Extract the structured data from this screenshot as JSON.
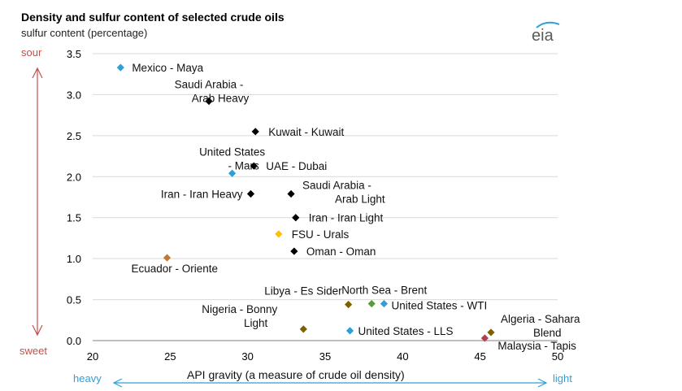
{
  "logo": {
    "text": "eia"
  },
  "chart_data": {
    "type": "scatter",
    "title": "Density and sulfur content of selected crude oils",
    "ylabel": "sulfur content (percentage)",
    "xlabel": "API gravity (a measure of crude oil density)",
    "xlim": [
      20,
      50
    ],
    "ylim": [
      0,
      3.5
    ],
    "xticks": [
      20,
      25,
      30,
      35,
      40,
      45,
      50
    ],
    "yticks": [
      "0.0",
      "0.5",
      "1.0",
      "1.5",
      "2.0",
      "2.5",
      "3.0",
      "3.5"
    ],
    "grid": true,
    "sulfur_scale": {
      "high": "sour",
      "low": "sweet"
    },
    "density_scale": {
      "low": "heavy",
      "high": "light"
    },
    "points": [
      {
        "name": "Mexico - Maya",
        "x": 21.8,
        "y": 3.33,
        "color": "#2e9fd8"
      },
      {
        "name": "Saudi Arabia - Arab Heavy",
        "x": 27.5,
        "y": 2.92,
        "color": "#000000"
      },
      {
        "name": "Kuwait - Kuwait",
        "x": 30.5,
        "y": 2.55,
        "color": "#000000"
      },
      {
        "name": "United States - Mars",
        "x": 29.0,
        "y": 2.04,
        "color": "#2e9fd8"
      },
      {
        "name": "UAE - Dubai",
        "x": 30.4,
        "y": 2.13,
        "color": "#000000"
      },
      {
        "name": "Iran - Iran Heavy",
        "x": 30.2,
        "y": 1.79,
        "color": "#000000"
      },
      {
        "name": "Saudi Arabia - Arab Light",
        "x": 32.8,
        "y": 1.79,
        "color": "#000000"
      },
      {
        "name": "Iran - Iran Light",
        "x": 33.1,
        "y": 1.5,
        "color": "#000000"
      },
      {
        "name": "FSU - Urals",
        "x": 32.0,
        "y": 1.3,
        "color": "#ffc000"
      },
      {
        "name": "Oman - Oman",
        "x": 33.0,
        "y": 1.09,
        "color": "#000000"
      },
      {
        "name": "Ecuador - Oriente",
        "x": 24.8,
        "y": 1.01,
        "color": "#c07a35"
      },
      {
        "name": "North Sea - Brent",
        "x": 38.0,
        "y": 0.45,
        "color": "#5b9a3c"
      },
      {
        "name": "Libya - Es Sider",
        "x": 36.5,
        "y": 0.44,
        "color": "#7f6000"
      },
      {
        "name": "United States - WTI",
        "x": 38.8,
        "y": 0.45,
        "color": "#2e9fd8"
      },
      {
        "name": "Nigeria - Bonny Light",
        "x": 33.6,
        "y": 0.14,
        "color": "#7f6000"
      },
      {
        "name": "United States - LLS",
        "x": 36.6,
        "y": 0.12,
        "color": "#2e9fd8"
      },
      {
        "name": "Algeria - Sahara Blend",
        "x": 45.7,
        "y": 0.1,
        "color": "#7f6000"
      },
      {
        "name": "Malaysia - Tapis",
        "x": 45.3,
        "y": 0.03,
        "color": "#b0404d"
      }
    ]
  }
}
